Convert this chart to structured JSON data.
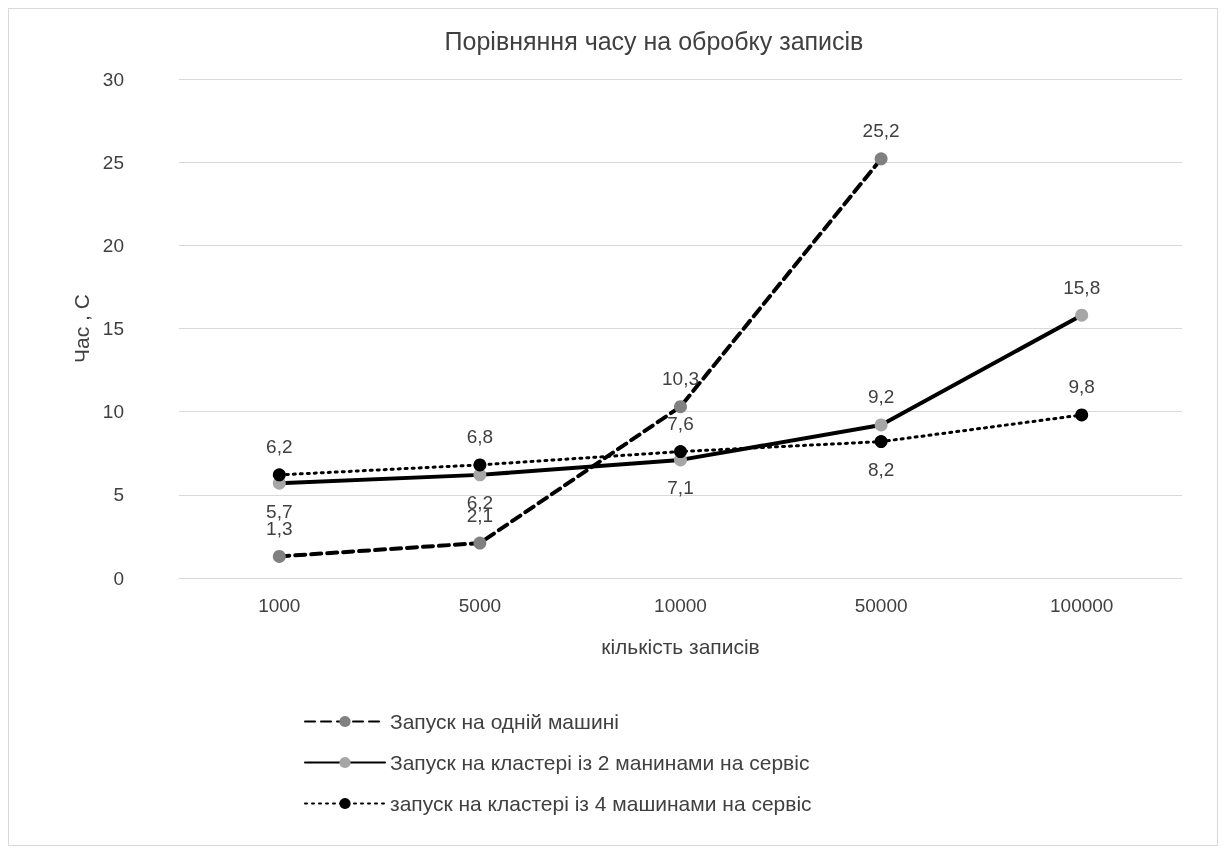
{
  "chart_data": {
    "type": "line",
    "title": "Порівняння часу на обробку записів",
    "xlabel": "кількість записів",
    "ylabel": "Час , С",
    "categories": [
      "1000",
      "5000",
      "10000",
      "50000",
      "100000"
    ],
    "ylim": [
      0,
      30
    ],
    "yticks": [
      0,
      5,
      10,
      15,
      20,
      25,
      30
    ],
    "grid": "y",
    "legend": "bottom",
    "marker": "circle",
    "series": [
      {
        "name": "Запуск на одній машині",
        "color": "#000000",
        "colors": [
          "#808080",
          "#808080",
          "#808080",
          "#808080",
          "#808080"
        ],
        "line_style": "dashed",
        "values": [
          1.3,
          2.1,
          10.3,
          25.2,
          null
        ],
        "value_labels": [
          "1,3",
          "2,1",
          "10,3",
          "25,2",
          null
        ]
      },
      {
        "name": "Запуск на кластері із 2 манинами на сервіс",
        "color": "#000000",
        "colors": [
          "#a6a6a6",
          "#a6a6a6",
          "#a6a6a6",
          "#a6a6a6",
          "#a6a6a6"
        ],
        "line_style": "solid",
        "values": [
          5.7,
          6.2,
          7.1,
          9.2,
          15.8
        ],
        "value_labels": [
          "5,7",
          "6,2",
          "7,1",
          "9,2",
          "15,8"
        ]
      },
      {
        "name": "запуск на кластері із 4 машинами на сервіс",
        "color": "#000000",
        "colors": [
          "#000000",
          "#000000",
          "#000000",
          "#000000",
          "#000000"
        ],
        "line_style": "dotted",
        "values": [
          6.2,
          6.8,
          7.6,
          8.2,
          9.8
        ],
        "value_labels": [
          "6,2",
          "6,8",
          "7,6",
          "8,2",
          "9,8"
        ]
      }
    ]
  }
}
